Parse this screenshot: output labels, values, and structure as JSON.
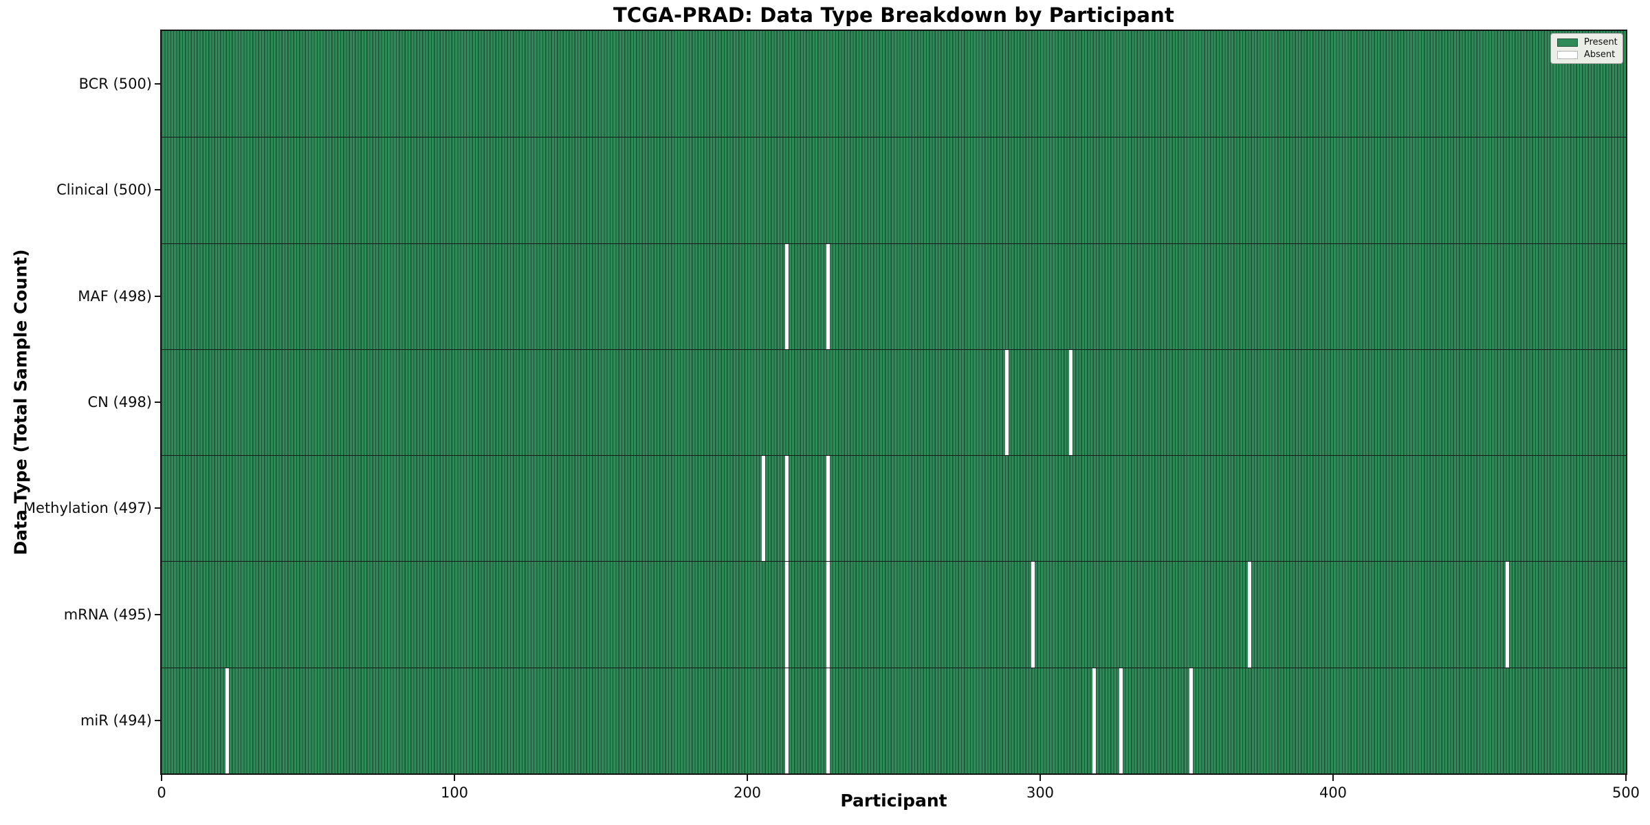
{
  "title": "TCGA-PRAD: Data Type Breakdown by Participant",
  "legend": {
    "present_label": "Present",
    "absent_label": "Absent"
  },
  "chart_data": {
    "type": "heatmap",
    "title": "TCGA-PRAD: Data Type Breakdown by Participant",
    "xlabel": "Participant",
    "ylabel": "Data Type (Total Sample Count)",
    "x_range": [
      0,
      500
    ],
    "x_ticks": [
      0,
      100,
      200,
      300,
      400,
      500
    ],
    "n_participants": 500,
    "grid": false,
    "legend_position": "upper right",
    "legend_entries": [
      "Present",
      "Absent"
    ],
    "colors": {
      "present": "#2e8b57",
      "absent": "#ffffff",
      "bar_edge": "#1f5138"
    },
    "rows": [
      {
        "data_type": "BCR",
        "label": "BCR (500)",
        "present_count": 500,
        "absent_participants": []
      },
      {
        "data_type": "Clinical",
        "label": "Clinical (500)",
        "present_count": 500,
        "absent_participants": []
      },
      {
        "data_type": "MAF",
        "label": "MAF (498)",
        "present_count": 498,
        "absent_participants": [
          213,
          227
        ]
      },
      {
        "data_type": "CN",
        "label": "CN (498)",
        "present_count": 498,
        "absent_participants": [
          288,
          310
        ]
      },
      {
        "data_type": "Methylation",
        "label": "Methylation (497)",
        "present_count": 497,
        "absent_participants": [
          205,
          213,
          227
        ]
      },
      {
        "data_type": "mRNA",
        "label": "mRNA (495)",
        "present_count": 495,
        "absent_participants": [
          213,
          227,
          297,
          371,
          459
        ]
      },
      {
        "data_type": "miR",
        "label": "miR (494)",
        "present_count": 494,
        "absent_participants": [
          22,
          213,
          227,
          318,
          327,
          351
        ]
      }
    ]
  }
}
